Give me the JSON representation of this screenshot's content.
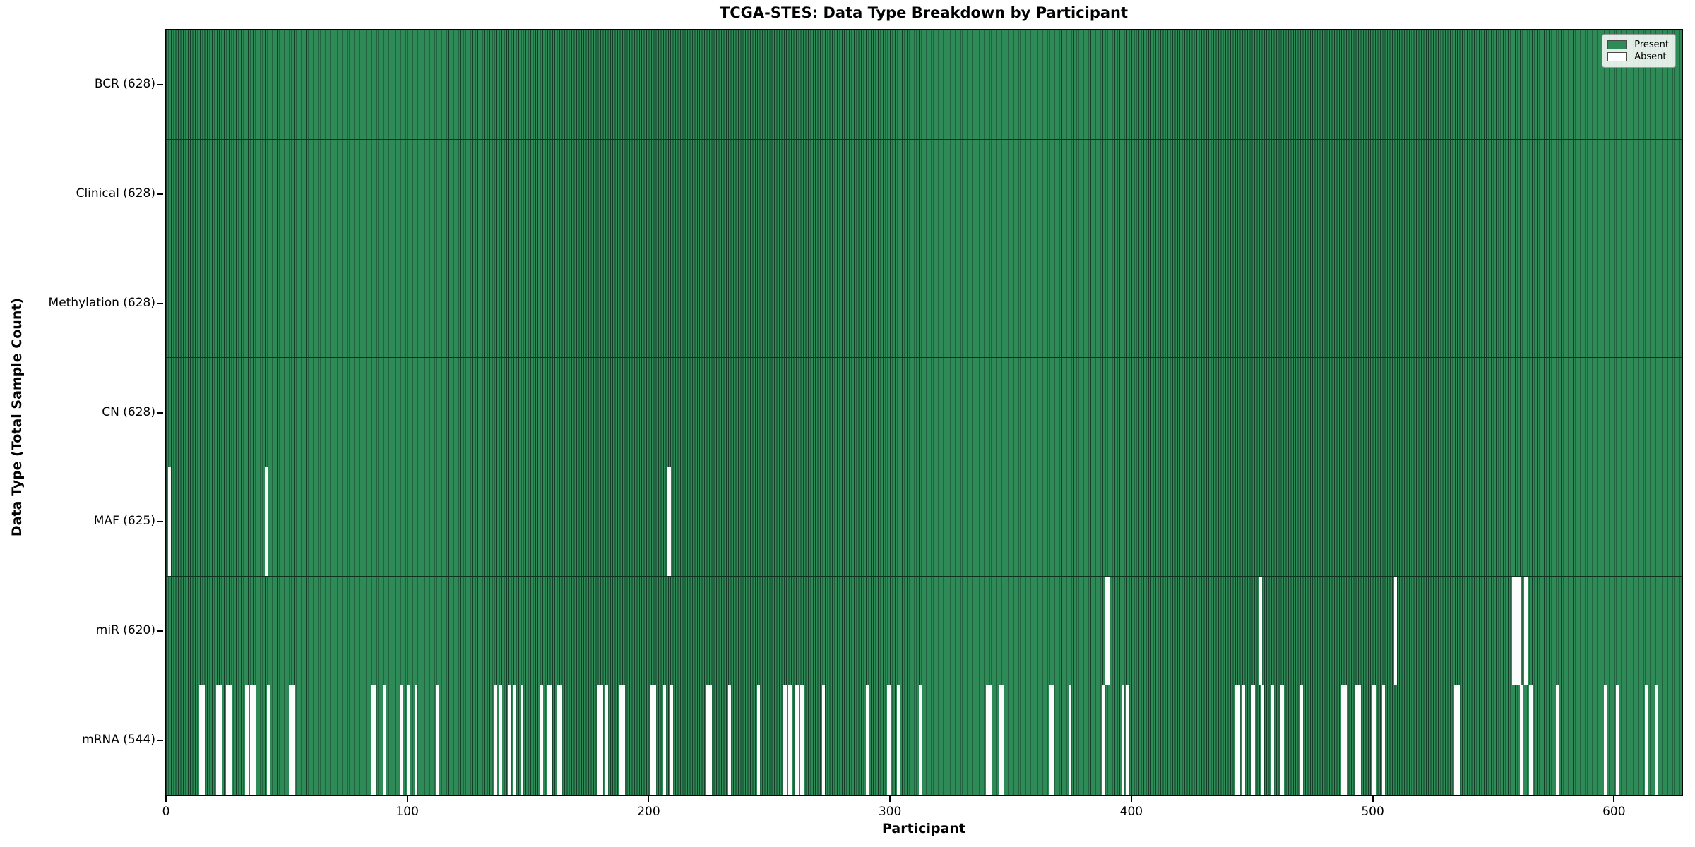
{
  "title": "TCGA-STES: Data Type Breakdown by Participant",
  "xlabel": "Participant",
  "ylabel": "Data Type (Total Sample Count)",
  "n_participants": 628,
  "x_ticks": [
    0,
    100,
    200,
    300,
    400,
    500,
    600
  ],
  "legend": {
    "present_label": "Present",
    "absent_label": "Absent"
  },
  "colors": {
    "present_fill": "#2e8b57",
    "bar_edge": "#143d27",
    "absent_fill": "#fcfcfc",
    "row_divider": "#0e3420"
  },
  "chart_data": {
    "type": "heatmap",
    "title": "TCGA-STES: Data Type Breakdown by Participant",
    "xlabel": "Participant",
    "ylabel": "Data Type (Total Sample Count)",
    "x_range": [
      0,
      628
    ],
    "x_tick_values": [
      0,
      100,
      200,
      300,
      400,
      500,
      600
    ],
    "legend_entries": [
      "Present",
      "Absent"
    ],
    "legend_position": "upper right",
    "grid": false,
    "cell_states": {
      "present": 1,
      "absent": 0
    },
    "rows": [
      {
        "data_type": "BCR",
        "label": "BCR (628)",
        "present_count": 628,
        "absent_participants": []
      },
      {
        "data_type": "Clinical",
        "label": "Clinical (628)",
        "present_count": 628,
        "absent_participants": []
      },
      {
        "data_type": "Methylation",
        "label": "Methylation (628)",
        "present_count": 628,
        "absent_participants": []
      },
      {
        "data_type": "CN",
        "label": "CN (628)",
        "present_count": 628,
        "absent_participants": []
      },
      {
        "data_type": "MAF",
        "label": "MAF (625)",
        "present_count": 625,
        "absent_participants": [
          1,
          41,
          208
        ]
      },
      {
        "data_type": "miR",
        "label": "miR (620)",
        "present_count": 620,
        "absent_participants": [
          389,
          390,
          453,
          509,
          558,
          559,
          560,
          563
        ]
      },
      {
        "data_type": "mRNA",
        "label": "mRNA (544)",
        "present_count": 544,
        "absent_participants": [
          14,
          15,
          21,
          22,
          25,
          26,
          33,
          35,
          36,
          42,
          51,
          52,
          85,
          86,
          90,
          97,
          100,
          103,
          112,
          136,
          138,
          142,
          144,
          147,
          155,
          158,
          159,
          162,
          163,
          179,
          180,
          182,
          188,
          189,
          201,
          202,
          206,
          209,
          224,
          225,
          233,
          245,
          256,
          258,
          261,
          263,
          272,
          290,
          299,
          303,
          312,
          340,
          341,
          345,
          346,
          366,
          367,
          374,
          388,
          396,
          398,
          443,
          444,
          446,
          450,
          454,
          458,
          462,
          470,
          487,
          488,
          493,
          494,
          500,
          504,
          534,
          535,
          561,
          565,
          576,
          596,
          601,
          613,
          617
        ]
      }
    ]
  }
}
